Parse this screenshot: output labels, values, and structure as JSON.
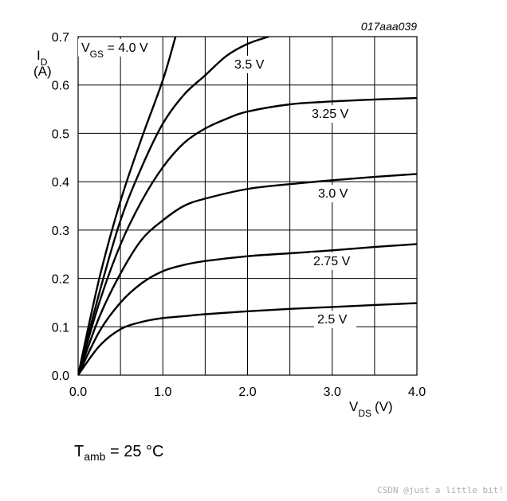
{
  "figure_id": "017aaa039",
  "chart_data": {
    "type": "line",
    "xlabel": "V",
    "xlabel_sub": "DS",
    "xlabel_unit": "(V)",
    "ylabel": "I",
    "ylabel_sub": "D",
    "ylabel_unit": "(A)",
    "xlim": [
      0.0,
      4.0
    ],
    "ylim": [
      0.0,
      0.7
    ],
    "x_ticks": [
      "0.0",
      "1.0",
      "2.0",
      "3.0",
      "4.0"
    ],
    "y_ticks": [
      "0.0",
      "0.1",
      "0.2",
      "0.3",
      "0.4",
      "0.5",
      "0.6",
      "0.7"
    ],
    "grid": true,
    "legend_prefix": "V",
    "legend_prefix_sub": "GS",
    "series": [
      {
        "name": "4.0 V",
        "x": [
          0,
          0.25,
          0.5,
          0.75,
          1.0,
          1.15
        ],
        "y": [
          0,
          0.2,
          0.36,
          0.49,
          0.61,
          0.7
        ]
      },
      {
        "name": "3.5 V",
        "x": [
          0,
          0.25,
          0.5,
          0.75,
          1.0,
          1.25,
          1.5,
          1.75,
          2.0,
          2.25
        ],
        "y": [
          0,
          0.17,
          0.32,
          0.43,
          0.52,
          0.58,
          0.62,
          0.66,
          0.685,
          0.7
        ]
      },
      {
        "name": "3.25 V",
        "x": [
          0,
          0.25,
          0.5,
          0.75,
          1.0,
          1.25,
          1.5,
          1.75,
          2.0,
          2.5,
          3.0,
          3.5,
          4.0
        ],
        "y": [
          0,
          0.15,
          0.27,
          0.36,
          0.43,
          0.48,
          0.51,
          0.53,
          0.545,
          0.56,
          0.566,
          0.57,
          0.573
        ]
      },
      {
        "name": "3.0 V",
        "x": [
          0,
          0.25,
          0.5,
          0.75,
          1.0,
          1.25,
          1.5,
          2.0,
          2.5,
          3.0,
          3.5,
          4.0
        ],
        "y": [
          0,
          0.12,
          0.21,
          0.28,
          0.32,
          0.35,
          0.365,
          0.385,
          0.395,
          0.403,
          0.41,
          0.416
        ]
      },
      {
        "name": "2.75 V",
        "x": [
          0,
          0.25,
          0.5,
          0.75,
          1.0,
          1.25,
          1.5,
          2.0,
          2.5,
          3.0,
          3.5,
          4.0
        ],
        "y": [
          0,
          0.09,
          0.15,
          0.19,
          0.215,
          0.228,
          0.236,
          0.246,
          0.252,
          0.258,
          0.265,
          0.271
        ]
      },
      {
        "name": "2.5 V",
        "x": [
          0,
          0.25,
          0.5,
          0.75,
          1.0,
          1.25,
          1.5,
          2.0,
          2.5,
          3.0,
          3.5,
          4.0
        ],
        "y": [
          0,
          0.06,
          0.095,
          0.11,
          0.118,
          0.122,
          0.126,
          0.132,
          0.137,
          0.141,
          0.145,
          0.149
        ]
      }
    ]
  },
  "footer": {
    "condition_prefix": "T",
    "condition_sub": "amb",
    "condition_value": " = 25 °C"
  },
  "watermark": "CSDN @just a little bit!"
}
